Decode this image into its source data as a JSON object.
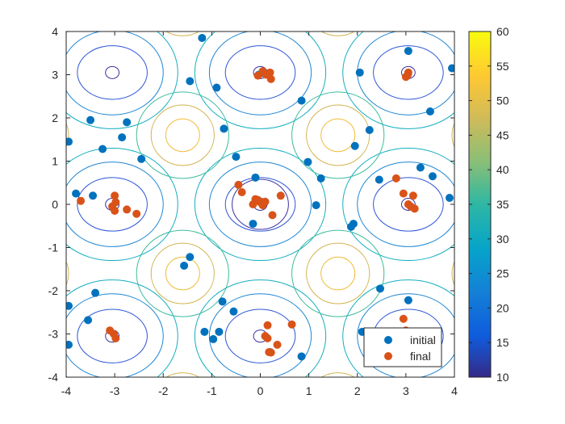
{
  "chart_data": {
    "type": "scatter",
    "title": "",
    "xlabel": "",
    "ylabel": "",
    "xlim": [
      -4,
      4
    ],
    "ylim": [
      -4,
      4
    ],
    "xticks": [
      -4,
      -3,
      -2,
      -1,
      0,
      1,
      2,
      3,
      4
    ],
    "yticks": [
      -4,
      -3,
      -2,
      -1,
      0,
      1,
      2,
      3,
      4
    ],
    "grid": false,
    "background": {
      "type": "contour",
      "formula": "10*(x-pi)^2... periodic surface; minima near (0,0), (±3,0), (0,±3), (±3,±3)",
      "levels": [
        10,
        15,
        20,
        25,
        30,
        35,
        40,
        45,
        50,
        55,
        60
      ]
    },
    "colorbar": {
      "range": [
        10,
        60
      ],
      "ticks": [
        10,
        15,
        20,
        25,
        30,
        35,
        40,
        45,
        50,
        55,
        60
      ],
      "colormap": "parula"
    },
    "legend": {
      "position": "bottom-right",
      "entries": [
        "initial",
        "final"
      ]
    },
    "series": [
      {
        "name": "initial",
        "color": "#0072BD",
        "points": [
          [
            -1.2,
            3.85
          ],
          [
            -0.03,
            3.0
          ],
          [
            3.05,
            3.55
          ],
          [
            3.95,
            3.15
          ],
          [
            2.05,
            3.05
          ],
          [
            -1.45,
            2.85
          ],
          [
            -0.9,
            2.7
          ],
          [
            0.85,
            2.4
          ],
          [
            3.5,
            2.15
          ],
          [
            -3.5,
            1.95
          ],
          [
            -2.75,
            1.9
          ],
          [
            -0.75,
            1.75
          ],
          [
            2.25,
            1.72
          ],
          [
            -2.85,
            1.55
          ],
          [
            -3.95,
            1.45
          ],
          [
            1.95,
            1.35
          ],
          [
            -3.25,
            1.28
          ],
          [
            -0.5,
            1.1
          ],
          [
            -2.45,
            1.05
          ],
          [
            0.98,
            0.98
          ],
          [
            3.3,
            0.85
          ],
          [
            -0.1,
            0.62
          ],
          [
            1.25,
            0.6
          ],
          [
            2.45,
            0.57
          ],
          [
            3.55,
            0.65
          ],
          [
            -3.8,
            0.25
          ],
          [
            -3.45,
            0.2
          ],
          [
            3.9,
            0.15
          ],
          [
            1.15,
            -0.02
          ],
          [
            -0.15,
            -0.45
          ],
          [
            1.92,
            -0.45
          ],
          [
            1.87,
            -0.52
          ],
          [
            -1.45,
            -1.22
          ],
          [
            -1.57,
            -1.42
          ],
          [
            2.47,
            -1.95
          ],
          [
            -3.4,
            -2.05
          ],
          [
            -0.78,
            -2.25
          ],
          [
            3.05,
            -2.22
          ],
          [
            -3.95,
            -2.35
          ],
          [
            -0.55,
            -2.48
          ],
          [
            -3.55,
            -2.68
          ],
          [
            -1.15,
            -2.95
          ],
          [
            -0.85,
            -2.95
          ],
          [
            2.1,
            -2.95
          ],
          [
            -0.97,
            -3.12
          ],
          [
            3.1,
            -2.95
          ],
          [
            -3.95,
            -3.25
          ],
          [
            0.2,
            -3.42
          ],
          [
            0.85,
            -3.52
          ]
        ]
      },
      {
        "name": "final",
        "color": "#D95319",
        "points": [
          [
            0.05,
            3.08
          ],
          [
            0.2,
            3.05
          ],
          [
            0.22,
            2.9
          ],
          [
            -0.05,
            2.98
          ],
          [
            0.12,
            3.0
          ],
          [
            3.05,
            3.05
          ],
          [
            3.0,
            2.95
          ],
          [
            3.04,
            3.0
          ],
          [
            -3.7,
            0.08
          ],
          [
            -3.0,
            0.2
          ],
          [
            -2.98,
            0.05
          ],
          [
            -3.05,
            -0.05
          ],
          [
            -3.0,
            -0.15
          ],
          [
            -2.75,
            -0.12
          ],
          [
            -2.55,
            -0.22
          ],
          [
            -0.45,
            0.45
          ],
          [
            -0.38,
            0.28
          ],
          [
            -0.1,
            0.12
          ],
          [
            0.0,
            0.05
          ],
          [
            -0.15,
            0.0
          ],
          [
            0.05,
            -0.02
          ],
          [
            -0.05,
            0.1
          ],
          [
            0.1,
            0.06
          ],
          [
            0.42,
            0.2
          ],
          [
            0.25,
            -0.25
          ],
          [
            2.95,
            0.25
          ],
          [
            2.8,
            0.6
          ],
          [
            3.15,
            0.2
          ],
          [
            3.05,
            0.0
          ],
          [
            3.1,
            -0.05
          ],
          [
            3.18,
            -0.1
          ],
          [
            -3.1,
            -2.92
          ],
          [
            -3.02,
            -3.0
          ],
          [
            -2.98,
            -3.1
          ],
          [
            2.95,
            -2.65
          ],
          [
            3.0,
            -2.92
          ],
          [
            3.08,
            -3.0
          ],
          [
            2.72,
            -3.0
          ],
          [
            0.15,
            -2.8
          ],
          [
            0.65,
            -2.78
          ],
          [
            0.1,
            -3.05
          ],
          [
            0.15,
            -3.1
          ],
          [
            0.35,
            -3.25
          ],
          [
            0.18,
            -3.42
          ],
          [
            0.22,
            -3.43
          ]
        ]
      }
    ]
  }
}
